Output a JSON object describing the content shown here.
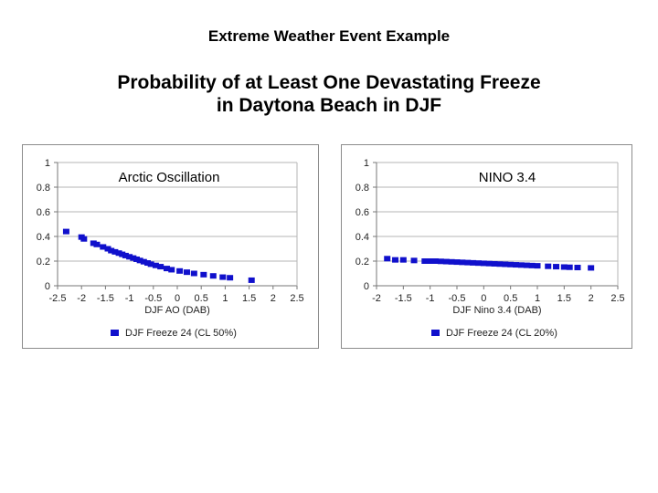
{
  "header": "Extreme Weather Event Example",
  "title_lines": [
    "Probability of at Least One Devastating Freeze",
    "in Daytona Beach in DJF"
  ],
  "chart_data": [
    {
      "type": "scatter",
      "overlay_label": "Arctic Oscillation",
      "xlabel": "DJF AO (DAB)",
      "ylabel": "",
      "xlim": [
        -2.5,
        2.5
      ],
      "ylim": [
        0,
        1
      ],
      "x_ticks": [
        "-2.5",
        "-2",
        "-1.5",
        "-1",
        "-0.5",
        "0",
        "0.5",
        "1",
        "1.5",
        "2",
        "2.5"
      ],
      "y_ticks": [
        "0",
        "0.2",
        "0.4",
        "0.6",
        "0.8",
        "1"
      ],
      "grid": true,
      "legend_position": "bottom",
      "color": "#1010cc",
      "series": [
        {
          "name": "DJF Freeze 24 (CL 50%)",
          "x": [
            -2.32,
            -2.0,
            -1.95,
            -1.75,
            -1.68,
            -1.55,
            -1.45,
            -1.38,
            -1.3,
            -1.22,
            -1.15,
            -1.08,
            -1.0,
            -0.92,
            -0.85,
            -0.78,
            -0.7,
            -0.62,
            -0.55,
            -0.45,
            -0.35,
            -0.22,
            -0.12,
            0.05,
            0.2,
            0.35,
            0.55,
            0.75,
            0.95,
            1.1,
            1.55
          ],
          "y": [
            0.44,
            0.395,
            0.38,
            0.345,
            0.335,
            0.315,
            0.3,
            0.285,
            0.275,
            0.265,
            0.255,
            0.245,
            0.235,
            0.225,
            0.215,
            0.205,
            0.195,
            0.185,
            0.175,
            0.165,
            0.155,
            0.14,
            0.13,
            0.12,
            0.11,
            0.1,
            0.09,
            0.08,
            0.07,
            0.065,
            0.045
          ]
        }
      ]
    },
    {
      "type": "scatter",
      "overlay_label": "NINO 3.4",
      "xlabel": "DJF Nino 3.4 (DAB)",
      "ylabel": "",
      "xlim": [
        -2,
        2.5
      ],
      "ylim": [
        0,
        1
      ],
      "x_ticks": [
        "-2",
        "-1.5",
        "-1",
        "-0.5",
        "0",
        "0.5",
        "1",
        "1.5",
        "2",
        "2.5"
      ],
      "y_ticks": [
        "0",
        "0.2",
        "0.4",
        "0.6",
        "0.8",
        "1"
      ],
      "grid": true,
      "legend_position": "bottom",
      "color": "#1010cc",
      "series": [
        {
          "name": "DJF Freeze 24 (CL 20%)",
          "x": [
            -1.8,
            -1.65,
            -1.5,
            -1.3,
            -1.1,
            -1.0,
            -0.9,
            -0.8,
            -0.7,
            -0.6,
            -0.5,
            -0.4,
            -0.3,
            -0.2,
            -0.1,
            0.0,
            0.1,
            0.2,
            0.3,
            0.4,
            0.5,
            0.6,
            0.7,
            0.8,
            0.9,
            1.0,
            1.2,
            1.35,
            1.5,
            1.6,
            1.75,
            2.0
          ],
          "y": [
            0.22,
            0.21,
            0.21,
            0.205,
            0.2,
            0.2,
            0.2,
            0.198,
            0.196,
            0.194,
            0.192,
            0.19,
            0.188,
            0.186,
            0.184,
            0.182,
            0.18,
            0.178,
            0.176,
            0.174,
            0.172,
            0.17,
            0.168,
            0.166,
            0.164,
            0.162,
            0.158,
            0.155,
            0.152,
            0.15,
            0.148,
            0.145
          ]
        }
      ]
    }
  ]
}
